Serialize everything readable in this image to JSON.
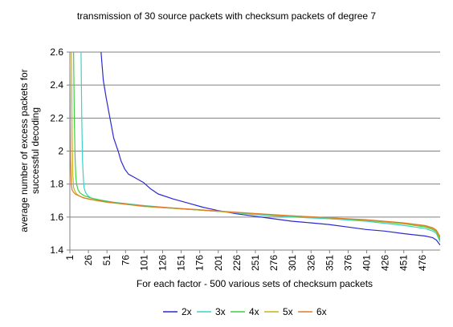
{
  "chart_data": {
    "type": "line",
    "title": "transmission of 30 source packets with checksum packets of degree 7",
    "xlabel": "For each factor - 500 various sets of checksum packets",
    "ylabel_line1": "average number of excess packets for",
    "ylabel_line2": "successful decoding",
    "ylim": [
      1.4,
      2.6
    ],
    "xlim": [
      1,
      500
    ],
    "yticks": [
      "1.4",
      "1.6",
      "1.8",
      "2",
      "2.2",
      "2.4",
      "2.6"
    ],
    "ytick_values": [
      1.4,
      1.6,
      1.8,
      2.0,
      2.2,
      2.4,
      2.6
    ],
    "xticks": [
      "1",
      "26",
      "51",
      "76",
      "101",
      "126",
      "151",
      "176",
      "201",
      "226",
      "251",
      "276",
      "301",
      "326",
      "351",
      "376",
      "401",
      "426",
      "451",
      "476"
    ],
    "xtick_values": [
      1,
      26,
      51,
      76,
      101,
      126,
      151,
      176,
      201,
      226,
      251,
      276,
      301,
      326,
      351,
      376,
      401,
      426,
      451,
      476
    ],
    "grid": "horizontal",
    "legend_position": "bottom",
    "series": [
      {
        "name": "2x",
        "color": "#2a2ad0",
        "x": [
          43,
          46,
          50,
          55,
          60,
          63,
          66,
          70,
          75,
          80,
          88,
          100,
          110,
          120,
          140,
          160,
          180,
          200,
          225,
          250,
          275,
          300,
          325,
          350,
          375,
          400,
          425,
          450,
          470,
          480,
          490,
          495,
          500
        ],
        "y": [
          2.6,
          2.43,
          2.32,
          2.2,
          2.08,
          2.04,
          2.0,
          1.94,
          1.89,
          1.86,
          1.84,
          1.81,
          1.77,
          1.74,
          1.71,
          1.685,
          1.66,
          1.64,
          1.62,
          1.605,
          1.59,
          1.575,
          1.565,
          1.555,
          1.54,
          1.525,
          1.515,
          1.5,
          1.49,
          1.485,
          1.475,
          1.46,
          1.43
        ]
      },
      {
        "name": "3x",
        "color": "#3fd0c8",
        "x": [
          16,
          17,
          18,
          19,
          20,
          22,
          25,
          30,
          40,
          60,
          80,
          100,
          150,
          200,
          250,
          300,
          350,
          400,
          450,
          480,
          490,
          495,
          500
        ],
        "y": [
          2.6,
          2.2,
          1.95,
          1.85,
          1.78,
          1.75,
          1.73,
          1.715,
          1.705,
          1.69,
          1.68,
          1.67,
          1.65,
          1.635,
          1.615,
          1.6,
          1.59,
          1.575,
          1.55,
          1.53,
          1.515,
          1.5,
          1.45
        ]
      },
      {
        "name": "4x",
        "color": "#3fd03f",
        "x": [
          6,
          7,
          8,
          9,
          10,
          12,
          15,
          20,
          30,
          50,
          75,
          100,
          150,
          200,
          250,
          300,
          350,
          400,
          450,
          480,
          490,
          495,
          500
        ],
        "y": [
          2.6,
          2.2,
          1.95,
          1.85,
          1.8,
          1.765,
          1.745,
          1.73,
          1.715,
          1.695,
          1.68,
          1.665,
          1.65,
          1.635,
          1.62,
          1.605,
          1.595,
          1.58,
          1.56,
          1.54,
          1.525,
          1.51,
          1.46
        ]
      },
      {
        "name": "5x",
        "color": "#c8b01a",
        "x": [
          3,
          4,
          5,
          6,
          8,
          10,
          15,
          20,
          30,
          50,
          75,
          100,
          150,
          200,
          250,
          300,
          350,
          400,
          450,
          480,
          490,
          495,
          500
        ],
        "y": [
          2.6,
          2.1,
          1.85,
          1.78,
          1.755,
          1.74,
          1.725,
          1.715,
          1.705,
          1.69,
          1.678,
          1.665,
          1.65,
          1.635,
          1.62,
          1.607,
          1.595,
          1.582,
          1.562,
          1.545,
          1.53,
          1.515,
          1.47
        ]
      },
      {
        "name": "6x",
        "color": "#e07a2a",
        "x": [
          1,
          2,
          3,
          4,
          6,
          8,
          10,
          15,
          20,
          30,
          50,
          75,
          100,
          150,
          200,
          250,
          300,
          350,
          400,
          450,
          480,
          490,
          495,
          500
        ],
        "y": [
          2.5,
          1.95,
          1.8,
          1.765,
          1.75,
          1.74,
          1.735,
          1.725,
          1.717,
          1.707,
          1.692,
          1.679,
          1.667,
          1.652,
          1.637,
          1.622,
          1.608,
          1.596,
          1.584,
          1.565,
          1.548,
          1.535,
          1.52,
          1.48
        ]
      }
    ]
  }
}
